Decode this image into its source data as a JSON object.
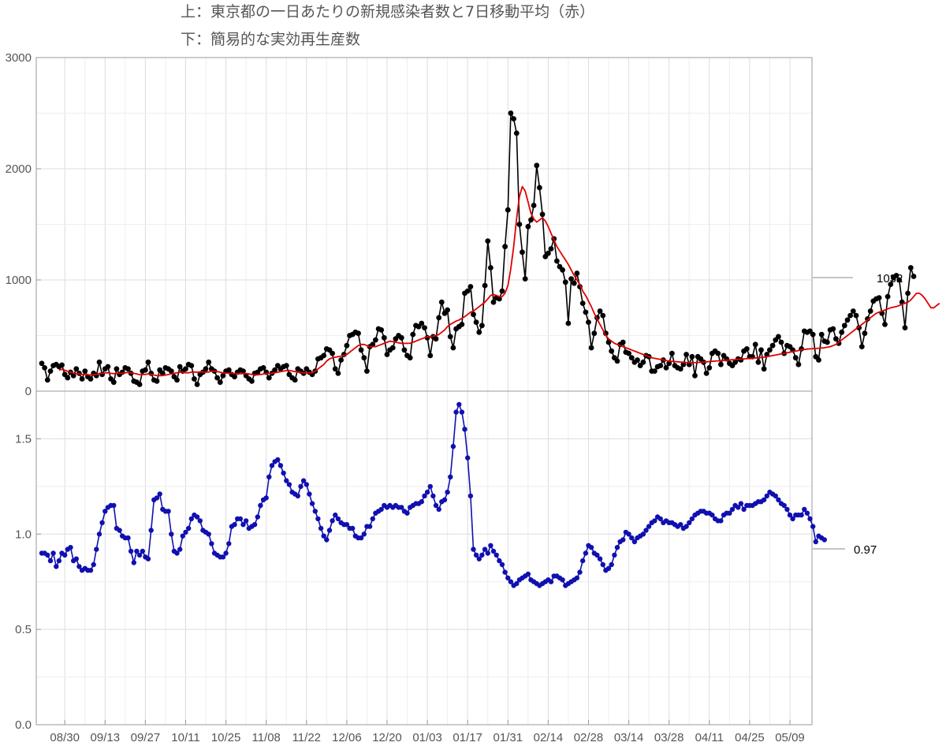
{
  "titles": {
    "line1": "上：東京都の一日あたりの新規感染者数と7日移動平均（赤）",
    "line2": "下：簡易的な実効再生産数"
  },
  "callouts": {
    "top_value": "1032",
    "bottom_value": "0.97"
  },
  "colors": {
    "daily_cases": "#000000",
    "moving_average": "#e00000",
    "rt": "#1010b0",
    "grid": "#dddddd",
    "frame": "#999999"
  },
  "chart_data": [
    {
      "type": "line",
      "title": "上：東京都の一日あたりの新規感染者数と7日移動平均（赤）",
      "x_type": "date",
      "x_start": "2020-08-22",
      "x_end": "2021-05-09",
      "x_step_days": 1,
      "xticks": [
        "08/30",
        "09/13",
        "09/27",
        "10/11",
        "10/25",
        "11/08",
        "11/22",
        "12/06",
        "12/20",
        "01/03",
        "01/17",
        "01/31",
        "02/14",
        "02/28",
        "03/14",
        "03/28",
        "04/11",
        "04/25",
        "05/09"
      ],
      "ylim": [
        0,
        3000
      ],
      "yticks": [
        0,
        1000,
        2000,
        3000
      ],
      "grid": true,
      "series": [
        {
          "role": "daily",
          "markers": true,
          "values": [
            250,
            210,
            100,
            180,
            230,
            240,
            220,
            235,
            150,
            120,
            170,
            140,
            200,
            160,
            110,
            180,
            130,
            110,
            160,
            140,
            260,
            150,
            200,
            220,
            110,
            80,
            200,
            150,
            170,
            210,
            200,
            160,
            90,
            80,
            60,
            180,
            190,
            260,
            160,
            100,
            90,
            190,
            160,
            210,
            200,
            180,
            130,
            100,
            220,
            180,
            200,
            240,
            230,
            110,
            60,
            150,
            170,
            200,
            260,
            200,
            180,
            120,
            80,
            140,
            180,
            190,
            150,
            130,
            170,
            190,
            180,
            140,
            110,
            90,
            160,
            170,
            200,
            210,
            170,
            120,
            160,
            190,
            230,
            200,
            220,
            230,
            150,
            120,
            100,
            200,
            180,
            160,
            200,
            170,
            150,
            180,
            290,
            300,
            320,
            380,
            370,
            340,
            200,
            160,
            280,
            330,
            410,
            500,
            510,
            530,
            520,
            370,
            300,
            180,
            400,
            420,
            460,
            560,
            550,
            480,
            330,
            370,
            390,
            470,
            500,
            480,
            370,
            320,
            300,
            510,
            590,
            580,
            610,
            570,
            480,
            320,
            490,
            470,
            660,
            800,
            700,
            730,
            490,
            390,
            560,
            580,
            600,
            880,
            900,
            940,
            690,
            620,
            530,
            590,
            950,
            1350,
            1110,
            800,
            840,
            830,
            900,
            1300,
            1630,
            2500,
            2450,
            2320,
            1500,
            1250,
            1010,
            1480,
            1540,
            1670,
            2030,
            1830,
            1590,
            1210,
            1240,
            1280,
            1370,
            1170,
            1120,
            1090,
            980,
            610,
            1010,
            970,
            1060,
            940,
            790,
            710,
            620,
            390,
            520,
            660,
            720,
            680,
            520,
            440,
            360,
            300,
            270,
            420,
            440,
            350,
            340,
            300,
            260,
            280,
            230,
            260,
            320,
            310,
            180,
            180,
            220,
            230,
            280,
            210,
            250,
            340,
            230,
            210,
            200,
            240,
            330,
            240,
            310,
            140,
            310,
            290,
            260,
            160,
            210,
            340,
            360,
            340,
            240,
            320,
            290,
            250,
            230,
            260,
            290,
            280,
            360,
            380,
            310,
            310,
            420,
            260,
            370,
            200,
            330,
            370,
            410,
            460,
            490,
            440,
            340,
            410,
            400,
            370,
            300,
            240,
            380,
            540,
            530,
            540,
            510,
            310,
            280,
            510,
            450,
            440,
            550,
            560,
            470,
            430,
            530,
            590,
            640,
            680,
            720,
            680,
            570,
            400,
            520,
            650,
            720,
            810,
            830,
            840,
            700,
            600,
            850,
            960,
            1020,
            1040,
            1000,
            800,
            570,
            880,
            1110,
            1032
          ]
        },
        {
          "role": "moving_average",
          "markers": false,
          "values": [
            null,
            null,
            null,
            null,
            null,
            null,
            190,
            196,
            188,
            178,
            170,
            162,
            158,
            155,
            150,
            152,
            148,
            145,
            148,
            150,
            160,
            160,
            164,
            165,
            160,
            157,
            162,
            160,
            160,
            165,
            168,
            165,
            160,
            155,
            148,
            150,
            150,
            155,
            150,
            145,
            140,
            140,
            140,
            145,
            150,
            155,
            160,
            165,
            170,
            170,
            165,
            165,
            170,
            172,
            170,
            172,
            172,
            170,
            172,
            180,
            180,
            175,
            170,
            165,
            163,
            160,
            160,
            158,
            156,
            157,
            158,
            158,
            155,
            150,
            146,
            146,
            150,
            154,
            159,
            160,
            161,
            165,
            170,
            175,
            180,
            185,
            186,
            181,
            176,
            172,
            168,
            165,
            165,
            165,
            165,
            180,
            200,
            220,
            240,
            270,
            290,
            300,
            305,
            310,
            315,
            320,
            330,
            350,
            370,
            390,
            410,
            420,
            420,
            410,
            400,
            400,
            400,
            410,
            420,
            430,
            440,
            450,
            445,
            440,
            435,
            430,
            430,
            430,
            430,
            440,
            450,
            460,
            470,
            480,
            490,
            490,
            495,
            500,
            510,
            530,
            550,
            580,
            600,
            615,
            630,
            640,
            655,
            670,
            690,
            710,
            720,
            740,
            760,
            780,
            800,
            830,
            860,
            870,
            860,
            850,
            850,
            880,
            950,
            1100,
            1300,
            1550,
            1750,
            1840,
            1800,
            1700,
            1600,
            1550,
            1520,
            1540,
            1560,
            1530,
            1480,
            1420,
            1360,
            1300,
            1260,
            1220,
            1180,
            1140,
            1090,
            1040,
            1000,
            960,
            900,
            860,
            810,
            760,
            700,
            650,
            600,
            550,
            500,
            470,
            450,
            430,
            420,
            410,
            400,
            390,
            380,
            370,
            360,
            350,
            340,
            330,
            320,
            310,
            300,
            295,
            290,
            285,
            280,
            275,
            270,
            268,
            266,
            264,
            262,
            260,
            258,
            256,
            255,
            256,
            258,
            260,
            262,
            264,
            266,
            268,
            270,
            272,
            274,
            276,
            278,
            280,
            282,
            284,
            286,
            288,
            290,
            292,
            294,
            296,
            298,
            300,
            302,
            305,
            310,
            315,
            320,
            325,
            330,
            335,
            340,
            345,
            350,
            355,
            360,
            365,
            370,
            375,
            378,
            380,
            382,
            384,
            386,
            388,
            390,
            395,
            400,
            410,
            420,
            440,
            460,
            480,
            500,
            520,
            540,
            560,
            580,
            600,
            620,
            640,
            660,
            680,
            700,
            710,
            720,
            730,
            740,
            750,
            755,
            760,
            770,
            780,
            790,
            800,
            820,
            850,
            880,
            880,
            860,
            830,
            790,
            750,
            750,
            770,
            790
          ]
        }
      ]
    },
    {
      "type": "line",
      "title": "下：簡易的な実効再生産数",
      "x_type": "date",
      "x_start": "2020-08-22",
      "x_end": "2021-05-08",
      "x_step_days": 1,
      "xticks": [
        "08/30",
        "09/13",
        "09/27",
        "10/11",
        "10/25",
        "11/08",
        "11/22",
        "12/06",
        "12/20",
        "01/03",
        "01/17",
        "01/31",
        "02/14",
        "02/28",
        "03/14",
        "03/28",
        "04/11",
        "04/25",
        "05/09"
      ],
      "ylim": [
        0,
        1.75
      ],
      "yticks": [
        0.0,
        0.5,
        1.0,
        1.5
      ],
      "grid": true,
      "series": [
        {
          "role": "rt",
          "markers": true,
          "values": [
            0.9,
            0.9,
            0.89,
            0.86,
            0.9,
            0.83,
            0.86,
            0.9,
            0.89,
            0.92,
            0.93,
            0.86,
            0.87,
            0.83,
            0.81,
            0.82,
            0.81,
            0.81,
            0.84,
            0.92,
            1.0,
            1.06,
            1.12,
            1.14,
            1.15,
            1.15,
            1.03,
            1.02,
            0.99,
            0.98,
            0.98,
            0.91,
            0.85,
            0.91,
            0.89,
            0.91,
            0.88,
            0.87,
            1.02,
            1.18,
            1.19,
            1.21,
            1.13,
            1.12,
            1.12,
            1.0,
            0.91,
            0.9,
            0.92,
            0.99,
            1.01,
            1.03,
            1.08,
            1.1,
            1.09,
            1.07,
            1.02,
            1.01,
            1.0,
            0.95,
            0.9,
            0.89,
            0.88,
            0.88,
            0.9,
            0.95,
            1.04,
            1.05,
            1.08,
            1.08,
            1.05,
            1.07,
            1.03,
            1.04,
            1.05,
            1.09,
            1.15,
            1.18,
            1.19,
            1.3,
            1.36,
            1.38,
            1.39,
            1.36,
            1.32,
            1.28,
            1.26,
            1.22,
            1.21,
            1.2,
            1.25,
            1.28,
            1.26,
            1.21,
            1.16,
            1.12,
            1.08,
            1.03,
            0.99,
            0.97,
            1.02,
            1.07,
            1.1,
            1.08,
            1.06,
            1.05,
            1.05,
            1.03,
            1.03,
            0.99,
            0.98,
            0.98,
            1.0,
            1.04,
            1.04,
            1.08,
            1.11,
            1.12,
            1.13,
            1.15,
            1.14,
            1.15,
            1.14,
            1.15,
            1.14,
            1.14,
            1.12,
            1.11,
            1.14,
            1.15,
            1.16,
            1.16,
            1.17,
            1.2,
            1.22,
            1.25,
            1.2,
            1.15,
            1.13,
            1.17,
            1.18,
            1.22,
            1.3,
            1.46,
            1.64,
            1.68,
            1.64,
            1.55,
            1.4,
            1.2,
            0.92,
            0.89,
            0.87,
            0.89,
            0.92,
            0.9,
            0.94,
            0.91,
            0.89,
            0.86,
            0.84,
            0.8,
            0.77,
            0.75,
            0.73,
            0.74,
            0.76,
            0.77,
            0.78,
            0.79,
            0.76,
            0.75,
            0.74,
            0.73,
            0.74,
            0.75,
            0.76,
            0.75,
            0.78,
            0.78,
            0.77,
            0.76,
            0.73,
            0.74,
            0.75,
            0.76,
            0.77,
            0.8,
            0.86,
            0.9,
            0.94,
            0.93,
            0.9,
            0.89,
            0.87,
            0.84,
            0.81,
            0.82,
            0.84,
            0.89,
            0.93,
            0.96,
            0.97,
            1.01,
            1.0,
            0.98,
            0.96,
            0.98,
            0.99,
            1.0,
            1.02,
            1.04,
            1.06,
            1.07,
            1.09,
            1.08,
            1.06,
            1.07,
            1.06,
            1.06,
            1.05,
            1.04,
            1.05,
            1.03,
            1.04,
            1.06,
            1.08,
            1.1,
            1.11,
            1.12,
            1.12,
            1.11,
            1.11,
            1.1,
            1.08,
            1.07,
            1.07,
            1.1,
            1.11,
            1.11,
            1.13,
            1.15,
            1.14,
            1.16,
            1.13,
            1.15,
            1.15,
            1.15,
            1.16,
            1.17,
            1.17,
            1.18,
            1.2,
            1.22,
            1.21,
            1.2,
            1.18,
            1.16,
            1.15,
            1.13,
            1.1,
            1.08,
            1.1,
            1.1,
            1.1,
            1.13,
            1.11,
            1.08,
            1.04,
            0.96,
            0.99,
            0.98,
            0.97
          ]
        }
      ]
    }
  ]
}
